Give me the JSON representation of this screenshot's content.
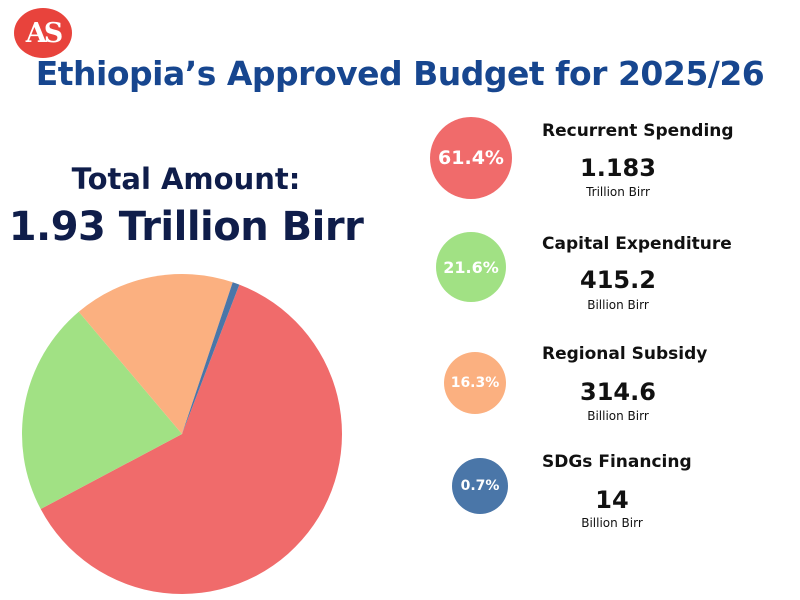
{
  "logo_text": "AS",
  "title": "Ethiopia’s Approved Budget for 2025/26",
  "total": {
    "label": "Total Amount:",
    "value": "1.93 Trillion Birr"
  },
  "items": [
    {
      "name": "Recurrent Spending",
      "percent_label": "61.4%",
      "amount": "1.183",
      "unit": "Trillion Birr",
      "color": "#f06b6b"
    },
    {
      "name": "Capital Expenditure",
      "percent_label": "21.6%",
      "amount": "415.2",
      "unit": "Billion Birr",
      "color": "#a1e184"
    },
    {
      "name": "Regional Subsidy",
      "percent_label": "16.3%",
      "amount": "314.6",
      "unit": "Billion Birr",
      "color": "#fbb080"
    },
    {
      "name": "SDGs Financing",
      "percent_label": "0.7%",
      "amount": "14",
      "unit": "Billion Birr",
      "color": "#4a76a8"
    }
  ],
  "chart_data": {
    "type": "pie",
    "title": "Ethiopia’s Approved Budget for 2025/26",
    "categories": [
      "Recurrent Spending",
      "Capital Expenditure",
      "Regional Subsidy",
      "SDGs Financing"
    ],
    "values": [
      61.4,
      21.6,
      16.3,
      0.7
    ],
    "colors": [
      "#f06b6b",
      "#a1e184",
      "#fbb080",
      "#4a76a8"
    ]
  }
}
